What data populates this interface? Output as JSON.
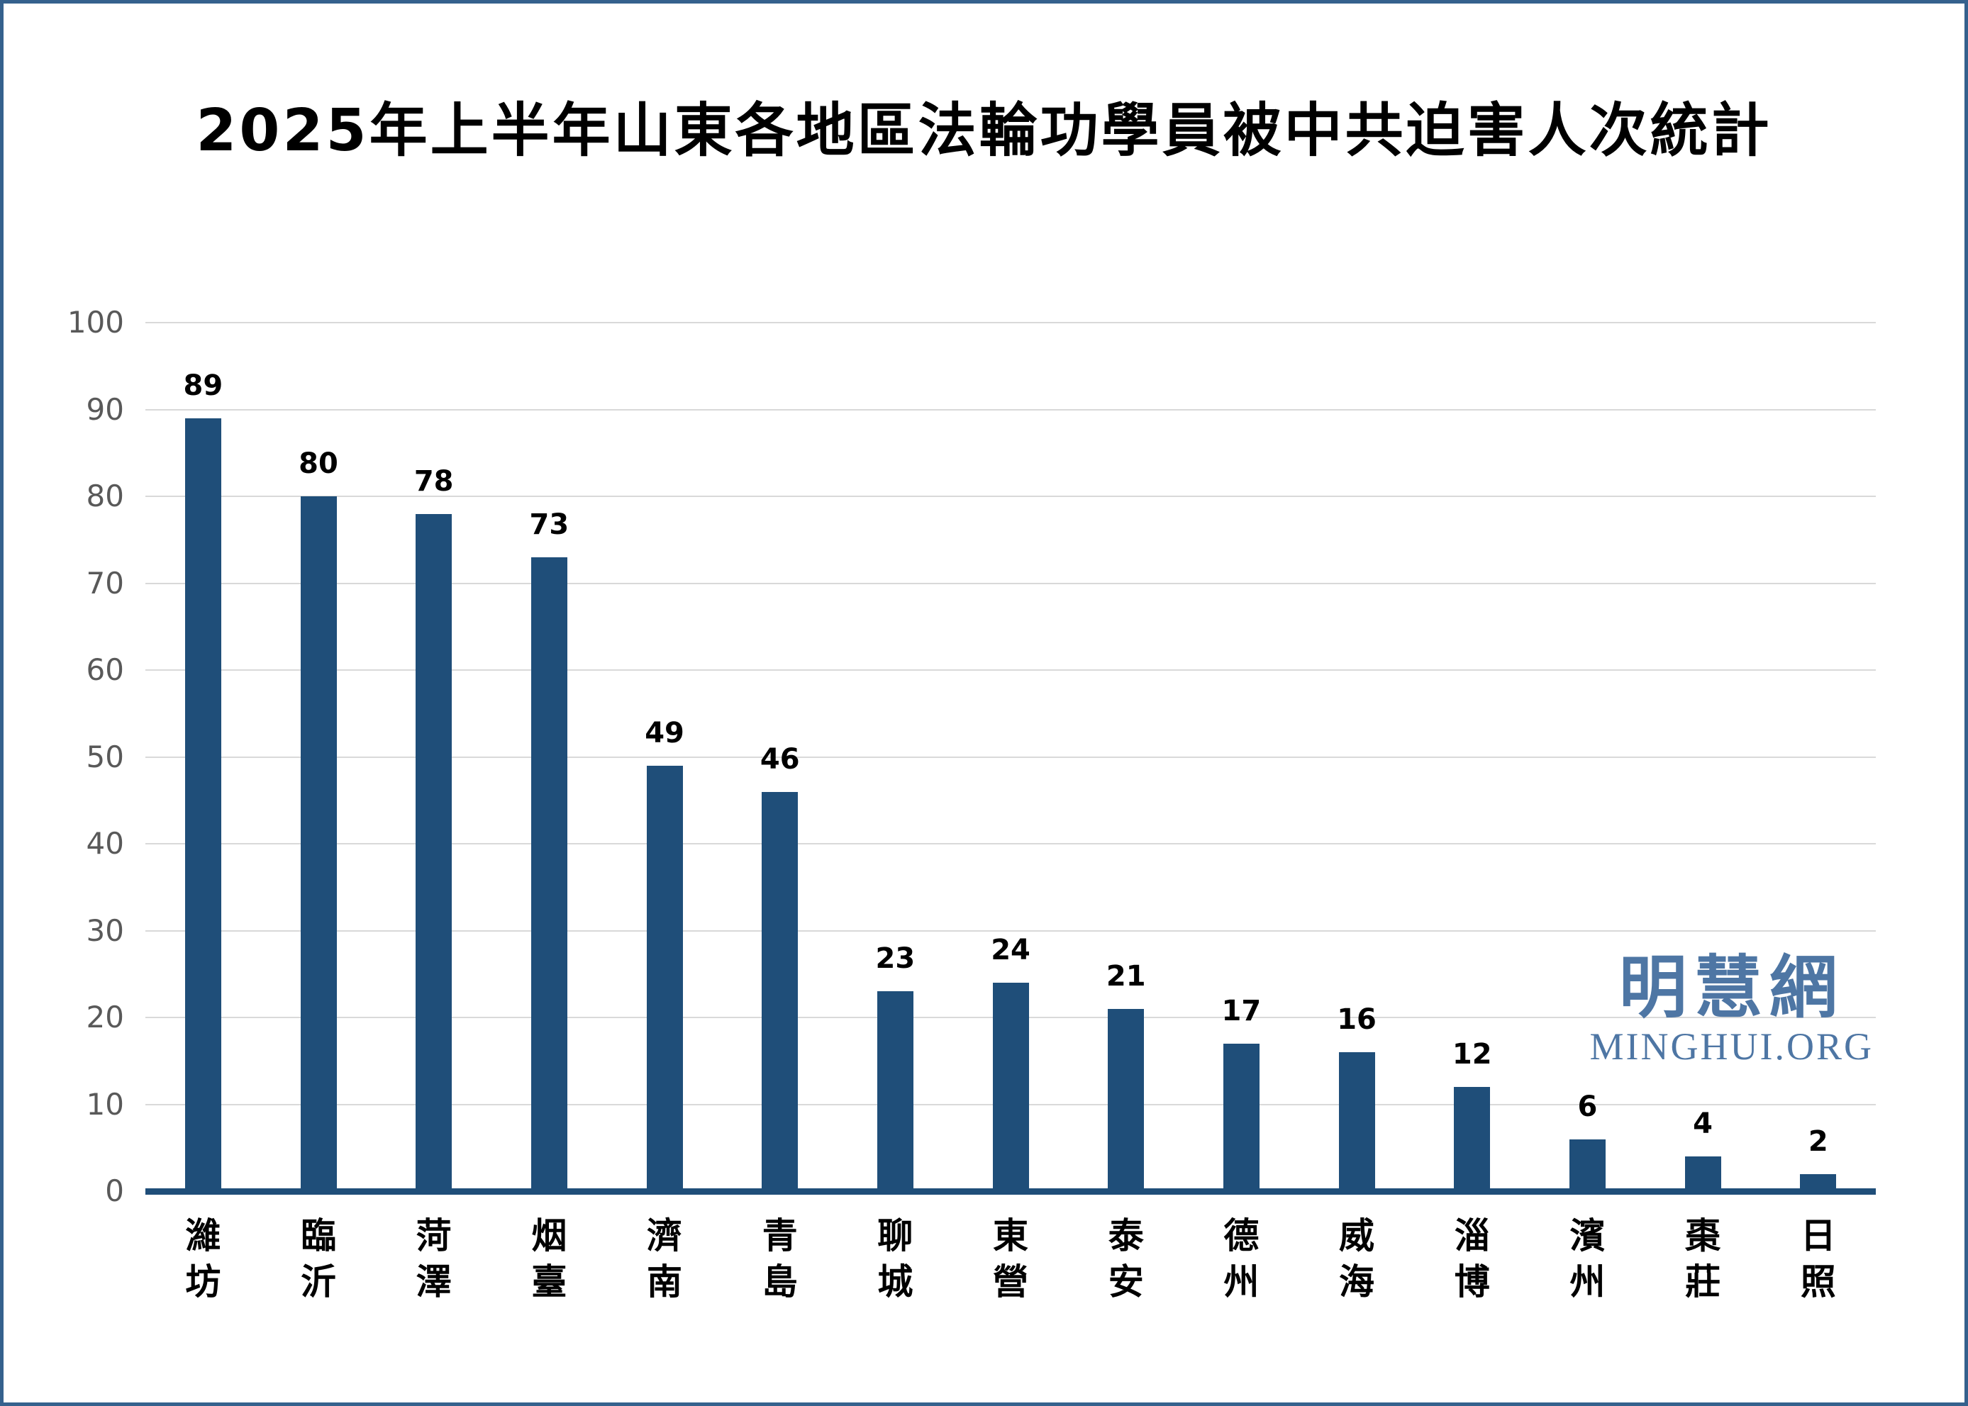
{
  "watermark": {
    "cjk": "明慧網",
    "latin": "MINGHUI.ORG",
    "color": "#4E76A4"
  },
  "frame": {
    "border_color": "#35618D",
    "background": "#FFFFFF"
  },
  "chart_data": {
    "type": "bar",
    "title": "2025年上半年山東各地區法輪功學員被中共迫害人次統計",
    "categories": [
      "濰坊",
      "臨沂",
      "菏澤",
      "烟臺",
      "濟南",
      "青島",
      "聊城",
      "東營",
      "泰安",
      "德州",
      "威海",
      "淄博",
      "濱州",
      "棗莊",
      "日照"
    ],
    "values": [
      89,
      80,
      78,
      73,
      49,
      46,
      23,
      24,
      21,
      17,
      16,
      12,
      6,
      4,
      2
    ],
    "data_labels": [
      89,
      80,
      78,
      73,
      49,
      46,
      23,
      24,
      21,
      17,
      16,
      12,
      6,
      4,
      2
    ],
    "xlabel": "",
    "ylabel": "",
    "ylim": [
      0,
      100
    ],
    "ytick_step": 10,
    "ytick_labels": [
      "0",
      "10",
      "20",
      "30",
      "40",
      "50",
      "60",
      "70",
      "80",
      "90",
      "100"
    ],
    "grid": true,
    "legend": false,
    "bar_color": "#1F4E79",
    "axis_line_color": "#1F4E79",
    "gridline_color": "#D9D9D9",
    "tick_label_color": "#595959",
    "data_label_color": "#000000"
  }
}
